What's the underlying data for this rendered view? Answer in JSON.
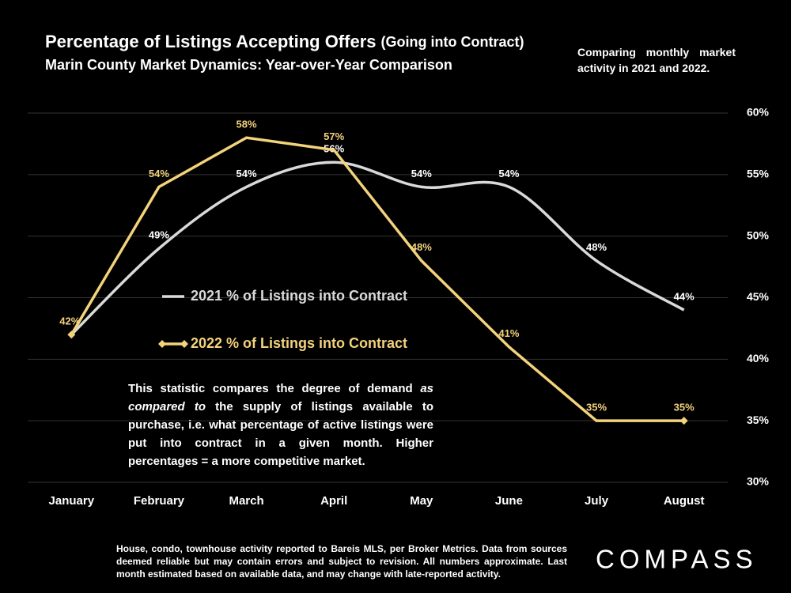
{
  "chart_data": {
    "type": "line",
    "title": "Percentage of Listings Accepting Offers",
    "title_note": "(Going into Contract)",
    "subtitle": "Marin County Market Dynamics: Year-over-Year Comparison",
    "side_note": "Comparing monthly market activity in 2021 and 2022.",
    "annotation": [
      "This statistic compares the degree of demand ",
      "as compared to",
      " the supply of listings available to purchase, i.e. what percentage of active listings were put into contract in a given month. Higher percentages = a more competitive market."
    ],
    "footnote": "House, condo, townhouse activity reported to Bareis MLS, per Broker Metrics. Data from sources deemed reliable but may contain errors and subject to revision. All numbers approximate. Last month estimated based on available data, and may change with late-reported activity.",
    "logo": "COMPASS",
    "categories": [
      "January",
      "February",
      "March",
      "April",
      "May",
      "June",
      "July",
      "August"
    ],
    "series": [
      {
        "name": "2021 % of Listings into Contract",
        "color": "#d9d9d9",
        "smooth": true,
        "values": [
          42,
          49,
          54,
          56,
          54,
          54,
          48,
          44
        ],
        "value_labels": [
          null,
          "49%",
          "54%",
          "56%",
          "54%",
          "54%",
          "48%",
          "44%"
        ]
      },
      {
        "name": "2022 % of Listings into Contract",
        "color": "#f3d27c",
        "smooth": false,
        "values": [
          42,
          54,
          58,
          57,
          48,
          41,
          35,
          35
        ],
        "value_labels": [
          "42%",
          "54%",
          "58%",
          "57%",
          "48%",
          "41%",
          "35%",
          "35%"
        ]
      }
    ],
    "ylim": [
      30,
      60
    ],
    "yticks": [
      {
        "value": 30,
        "label": "30%"
      },
      {
        "value": 35,
        "label": "35%"
      },
      {
        "value": 40,
        "label": "40%"
      },
      {
        "value": 45,
        "label": "45%"
      },
      {
        "value": 50,
        "label": "50%"
      },
      {
        "value": 55,
        "label": "55%"
      },
      {
        "value": 60,
        "label": "60%"
      }
    ],
    "grid": true,
    "legend": "center"
  }
}
